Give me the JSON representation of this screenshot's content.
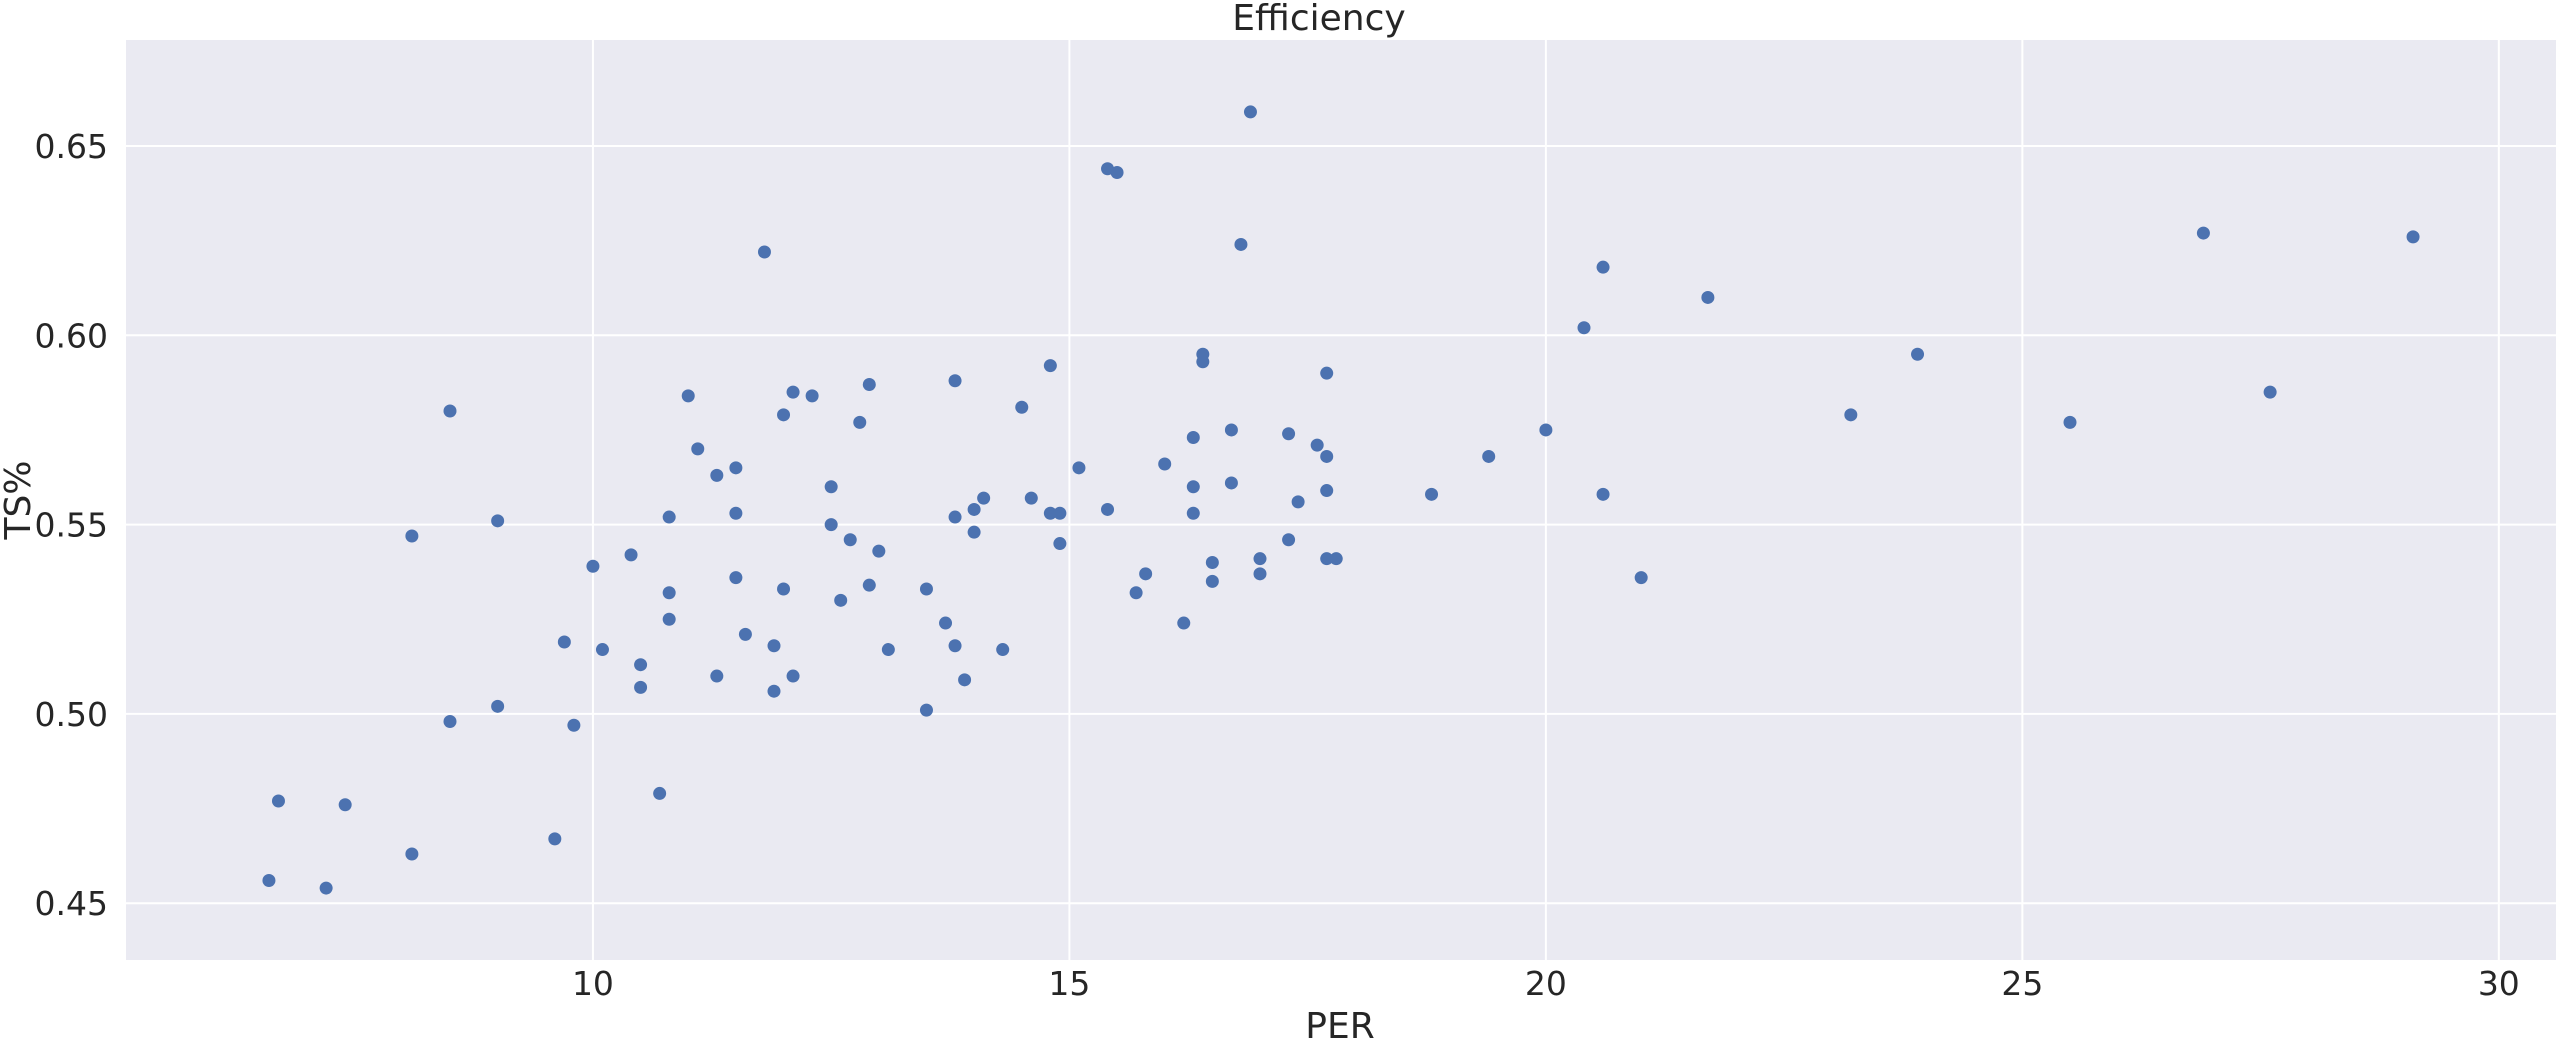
{
  "chart_data": {
    "type": "scatter",
    "title": "Efficiency",
    "xlabel": "PER",
    "ylabel": "TS%",
    "xlim": [
      5.1,
      30.6
    ],
    "ylim": [
      0.435,
      0.678
    ],
    "x_ticks": [
      10,
      15,
      20,
      25,
      30
    ],
    "x_tick_labels": [
      "10",
      "15",
      "20",
      "25",
      "30"
    ],
    "y_ticks": [
      0.45,
      0.5,
      0.55,
      0.6,
      0.65
    ],
    "y_tick_labels": [
      "0.45",
      "0.50",
      "0.55",
      "0.60",
      "0.65"
    ],
    "grid": true,
    "colors": {
      "background": "#eaeaf2",
      "grid": "#ffffff",
      "point": "#4c72b0",
      "text": "#262626"
    },
    "points": [
      {
        "x": 6.6,
        "y": 0.456
      },
      {
        "x": 6.7,
        "y": 0.477
      },
      {
        "x": 7.2,
        "y": 0.454
      },
      {
        "x": 7.4,
        "y": 0.476
      },
      {
        "x": 8.1,
        "y": 0.463
      },
      {
        "x": 8.1,
        "y": 0.547
      },
      {
        "x": 8.5,
        "y": 0.58
      },
      {
        "x": 8.5,
        "y": 0.498
      },
      {
        "x": 9.0,
        "y": 0.551
      },
      {
        "x": 9.0,
        "y": 0.502
      },
      {
        "x": 9.6,
        "y": 0.467
      },
      {
        "x": 9.7,
        "y": 0.519
      },
      {
        "x": 9.8,
        "y": 0.497
      },
      {
        "x": 10.0,
        "y": 0.539
      },
      {
        "x": 10.1,
        "y": 0.517
      },
      {
        "x": 10.4,
        "y": 0.542
      },
      {
        "x": 10.5,
        "y": 0.513
      },
      {
        "x": 10.5,
        "y": 0.507
      },
      {
        "x": 10.7,
        "y": 0.479
      },
      {
        "x": 10.8,
        "y": 0.552
      },
      {
        "x": 10.8,
        "y": 0.532
      },
      {
        "x": 10.8,
        "y": 0.525
      },
      {
        "x": 11.0,
        "y": 0.584
      },
      {
        "x": 11.1,
        "y": 0.57
      },
      {
        "x": 11.3,
        "y": 0.563
      },
      {
        "x": 11.3,
        "y": 0.51
      },
      {
        "x": 11.5,
        "y": 0.565
      },
      {
        "x": 11.5,
        "y": 0.553
      },
      {
        "x": 11.5,
        "y": 0.536
      },
      {
        "x": 11.6,
        "y": 0.521
      },
      {
        "x": 11.8,
        "y": 0.622
      },
      {
        "x": 11.9,
        "y": 0.518
      },
      {
        "x": 11.9,
        "y": 0.506
      },
      {
        "x": 12.0,
        "y": 0.579
      },
      {
        "x": 12.0,
        "y": 0.533
      },
      {
        "x": 12.1,
        "y": 0.585
      },
      {
        "x": 12.1,
        "y": 0.51
      },
      {
        "x": 12.3,
        "y": 0.584
      },
      {
        "x": 12.5,
        "y": 0.56
      },
      {
        "x": 12.5,
        "y": 0.55
      },
      {
        "x": 12.6,
        "y": 0.53
      },
      {
        "x": 12.7,
        "y": 0.546
      },
      {
        "x": 12.8,
        "y": 0.577
      },
      {
        "x": 12.9,
        "y": 0.587
      },
      {
        "x": 12.9,
        "y": 0.534
      },
      {
        "x": 13.0,
        "y": 0.543
      },
      {
        "x": 13.1,
        "y": 0.517
      },
      {
        "x": 13.5,
        "y": 0.533
      },
      {
        "x": 13.5,
        "y": 0.501
      },
      {
        "x": 13.7,
        "y": 0.524
      },
      {
        "x": 13.8,
        "y": 0.588
      },
      {
        "x": 13.8,
        "y": 0.552
      },
      {
        "x": 13.8,
        "y": 0.518
      },
      {
        "x": 13.9,
        "y": 0.509
      },
      {
        "x": 14.0,
        "y": 0.554
      },
      {
        "x": 14.0,
        "y": 0.548
      },
      {
        "x": 14.1,
        "y": 0.557
      },
      {
        "x": 14.3,
        "y": 0.517
      },
      {
        "x": 14.5,
        "y": 0.581
      },
      {
        "x": 14.6,
        "y": 0.557
      },
      {
        "x": 14.8,
        "y": 0.592
      },
      {
        "x": 14.8,
        "y": 0.553
      },
      {
        "x": 14.9,
        "y": 0.553
      },
      {
        "x": 14.9,
        "y": 0.545
      },
      {
        "x": 15.1,
        "y": 0.565
      },
      {
        "x": 15.4,
        "y": 0.644
      },
      {
        "x": 15.4,
        "y": 0.554
      },
      {
        "x": 15.5,
        "y": 0.643
      },
      {
        "x": 15.7,
        "y": 0.532
      },
      {
        "x": 15.8,
        "y": 0.537
      },
      {
        "x": 16.0,
        "y": 0.566
      },
      {
        "x": 16.2,
        "y": 0.524
      },
      {
        "x": 16.3,
        "y": 0.573
      },
      {
        "x": 16.3,
        "y": 0.56
      },
      {
        "x": 16.3,
        "y": 0.553
      },
      {
        "x": 16.4,
        "y": 0.595
      },
      {
        "x": 16.4,
        "y": 0.593
      },
      {
        "x": 16.5,
        "y": 0.54
      },
      {
        "x": 16.5,
        "y": 0.535
      },
      {
        "x": 16.7,
        "y": 0.575
      },
      {
        "x": 16.7,
        "y": 0.561
      },
      {
        "x": 16.8,
        "y": 0.624
      },
      {
        "x": 16.9,
        "y": 0.659
      },
      {
        "x": 17.0,
        "y": 0.541
      },
      {
        "x": 17.0,
        "y": 0.537
      },
      {
        "x": 17.3,
        "y": 0.574
      },
      {
        "x": 17.3,
        "y": 0.546
      },
      {
        "x": 17.4,
        "y": 0.556
      },
      {
        "x": 17.6,
        "y": 0.571
      },
      {
        "x": 17.7,
        "y": 0.59
      },
      {
        "x": 17.7,
        "y": 0.568
      },
      {
        "x": 17.7,
        "y": 0.559
      },
      {
        "x": 17.7,
        "y": 0.541
      },
      {
        "x": 17.8,
        "y": 0.541
      },
      {
        "x": 18.8,
        "y": 0.558
      },
      {
        "x": 19.4,
        "y": 0.568
      },
      {
        "x": 20.0,
        "y": 0.575
      },
      {
        "x": 20.4,
        "y": 0.602
      },
      {
        "x": 20.6,
        "y": 0.618
      },
      {
        "x": 20.6,
        "y": 0.558
      },
      {
        "x": 21.0,
        "y": 0.536
      },
      {
        "x": 21.7,
        "y": 0.61
      },
      {
        "x": 23.2,
        "y": 0.579
      },
      {
        "x": 23.9,
        "y": 0.595
      },
      {
        "x": 25.5,
        "y": 0.577
      },
      {
        "x": 26.9,
        "y": 0.627
      },
      {
        "x": 27.6,
        "y": 0.585
      },
      {
        "x": 29.1,
        "y": 0.626
      }
    ]
  }
}
